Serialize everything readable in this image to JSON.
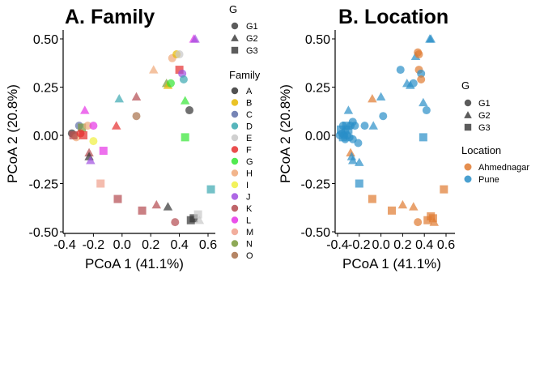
{
  "colors": {
    "A": "#333333",
    "B": "#e6b800",
    "C": "#5e6fa8",
    "D": "#3aa8b0",
    "E": "#c8c8c8",
    "F": "#e62e2e",
    "G": "#33e633",
    "H": "#f0a878",
    "I": "#f0f040",
    "J": "#a04ee0",
    "K": "#b44a50",
    "L": "#e633e6",
    "M": "#f0a08c",
    "N": "#7a9a3a",
    "O": "#a8704a",
    "Ahmednagar": "#e07a30",
    "Pune": "#2a8fc8"
  },
  "legend": {
    "g_title": "G",
    "g_items": [
      "G1",
      "G2",
      "G3"
    ],
    "family_title": "Family",
    "family_items": [
      "A",
      "B",
      "C",
      "D",
      "E",
      "F",
      "G",
      "H",
      "I",
      "J",
      "K",
      "L",
      "M",
      "N",
      "O"
    ],
    "location_title": "Location",
    "location_items": [
      "Ahmednagar",
      "Pune"
    ]
  },
  "chart_data": [
    {
      "type": "scatter",
      "title": "A. Family",
      "xlabel": "PCoA 1 (41.1%)",
      "ylabel": "PCoA 2 (20.8%)",
      "xlim": [
        -0.4,
        0.65
      ],
      "ylim": [
        -0.52,
        0.55
      ],
      "xticks": [
        -0.4,
        -0.2,
        0.0,
        0.2,
        0.4,
        0.6
      ],
      "xtick_labels": [
        "-0.4",
        "-0.2",
        "0.0",
        "0.2",
        "0.4",
        "0.6"
      ],
      "yticks": [
        -0.5,
        -0.25,
        0.0,
        0.25,
        0.5
      ],
      "ytick_labels": [
        "-0.50",
        "-0.25",
        "0.00",
        "0.25",
        "0.50"
      ],
      "grid": false,
      "legend_position": "right",
      "shape_key": "G",
      "color_key": "Family",
      "points": [
        {
          "x": -0.35,
          "y": 0.01,
          "g": "G1",
          "c": "A"
        },
        {
          "x": -0.33,
          "y": 0.0,
          "g": "G1",
          "c": "O"
        },
        {
          "x": -0.32,
          "y": -0.01,
          "g": "G1",
          "c": "H"
        },
        {
          "x": -0.34,
          "y": 0.0,
          "g": "G3",
          "c": "K"
        },
        {
          "x": -0.3,
          "y": 0.05,
          "g": "G1",
          "c": "C"
        },
        {
          "x": -0.28,
          "y": 0.04,
          "g": "G3",
          "c": "N"
        },
        {
          "x": -0.27,
          "y": 0.0,
          "g": "G3",
          "c": "F"
        },
        {
          "x": -0.29,
          "y": 0.01,
          "g": "G1",
          "c": "F"
        },
        {
          "x": -0.26,
          "y": 0.13,
          "g": "G2",
          "c": "L"
        },
        {
          "x": -0.24,
          "y": 0.05,
          "g": "G1",
          "c": "H"
        },
        {
          "x": -0.2,
          "y": 0.05,
          "g": "G1",
          "c": "L"
        },
        {
          "x": -0.2,
          "y": -0.03,
          "g": "G1",
          "c": "I"
        },
        {
          "x": -0.23,
          "y": -0.09,
          "g": "G2",
          "c": "K"
        },
        {
          "x": -0.23,
          "y": -0.11,
          "g": "G2",
          "c": "A"
        },
        {
          "x": -0.22,
          "y": -0.13,
          "g": "G2",
          "c": "J"
        },
        {
          "x": -0.13,
          "y": -0.08,
          "g": "G3",
          "c": "L"
        },
        {
          "x": -0.15,
          "y": -0.25,
          "g": "G3",
          "c": "M"
        },
        {
          "x": -0.04,
          "y": 0.05,
          "g": "G2",
          "c": "F"
        },
        {
          "x": -0.02,
          "y": 0.19,
          "g": "G2",
          "c": "D"
        },
        {
          "x": -0.03,
          "y": -0.33,
          "g": "G3",
          "c": "K"
        },
        {
          "x": 0.1,
          "y": 0.2,
          "g": "G2",
          "c": "K"
        },
        {
          "x": 0.1,
          "y": 0.1,
          "g": "G1",
          "c": "O"
        },
        {
          "x": 0.14,
          "y": -0.39,
          "g": "G3",
          "c": "K"
        },
        {
          "x": 0.22,
          "y": 0.34,
          "g": "G2",
          "c": "H"
        },
        {
          "x": 0.24,
          "y": -0.36,
          "g": "G2",
          "c": "K"
        },
        {
          "x": 0.31,
          "y": 0.27,
          "g": "G2",
          "c": "N"
        },
        {
          "x": 0.32,
          "y": 0.26,
          "g": "G2",
          "c": "B"
        },
        {
          "x": 0.34,
          "y": 0.27,
          "g": "G1",
          "c": "G"
        },
        {
          "x": 0.35,
          "y": 0.4,
          "g": "G1",
          "c": "H"
        },
        {
          "x": 0.38,
          "y": 0.42,
          "g": "G1",
          "c": "B"
        },
        {
          "x": 0.4,
          "y": 0.42,
          "g": "G1",
          "c": "E"
        },
        {
          "x": 0.4,
          "y": 0.34,
          "g": "G3",
          "c": "F"
        },
        {
          "x": 0.42,
          "y": 0.32,
          "g": "G1",
          "c": "J"
        },
        {
          "x": 0.43,
          "y": 0.29,
          "g": "G1",
          "c": "D"
        },
        {
          "x": 0.44,
          "y": 0.18,
          "g": "G2",
          "c": "G"
        },
        {
          "x": 0.47,
          "y": 0.13,
          "g": "G1",
          "c": "A"
        },
        {
          "x": 0.44,
          "y": -0.01,
          "g": "G3",
          "c": "G"
        },
        {
          "x": 0.32,
          "y": -0.37,
          "g": "G2",
          "c": "A"
        },
        {
          "x": 0.37,
          "y": -0.45,
          "g": "G1",
          "c": "K"
        },
        {
          "x": 0.48,
          "y": -0.44,
          "g": "G3",
          "c": "A"
        },
        {
          "x": 0.5,
          "y": -0.43,
          "g": "G3",
          "c": "A"
        },
        {
          "x": 0.53,
          "y": -0.41,
          "g": "G3",
          "c": "E"
        },
        {
          "x": 0.54,
          "y": -0.44,
          "g": "G2",
          "c": "E"
        },
        {
          "x": 0.62,
          "y": -0.28,
          "g": "G3",
          "c": "D"
        },
        {
          "x": 0.5,
          "y": 0.5,
          "g": "G2",
          "c": "L"
        },
        {
          "x": 0.51,
          "y": 0.5,
          "g": "G2",
          "c": "J"
        }
      ]
    },
    {
      "type": "scatter",
      "title": "B. Location",
      "xlabel": "PCoA 1 (41.1%)",
      "ylabel": "PCoA 2 (20.8%)",
      "xlim": [
        -0.4,
        0.68
      ],
      "ylim": [
        -0.52,
        0.55
      ],
      "xticks": [
        -0.4,
        -0.2,
        0.0,
        0.2,
        0.4,
        0.6
      ],
      "xtick_labels": [
        "-0.4",
        "-0.2",
        "0.0",
        "0.2",
        "0.4",
        "0.6"
      ],
      "yticks": [
        -0.5,
        -0.25,
        0.0,
        0.25,
        0.5
      ],
      "ytick_labels": [
        "-0.50",
        "-0.25",
        "0.00",
        "0.25",
        "0.50"
      ],
      "grid": false,
      "legend_position": "right",
      "shape_key": "G",
      "color_key": "Location",
      "points": [
        {
          "x": -0.38,
          "y": 0.0,
          "g": "G1",
          "c": "Pune"
        },
        {
          "x": -0.37,
          "y": 0.03,
          "g": "G3",
          "c": "Pune"
        },
        {
          "x": -0.36,
          "y": 0.01,
          "g": "G1",
          "c": "Pune"
        },
        {
          "x": -0.35,
          "y": 0.05,
          "g": "G1",
          "c": "Pune"
        },
        {
          "x": -0.35,
          "y": -0.01,
          "g": "G3",
          "c": "Pune"
        },
        {
          "x": -0.34,
          "y": 0.0,
          "g": "G1",
          "c": "Pune"
        },
        {
          "x": -0.33,
          "y": 0.02,
          "g": "G1",
          "c": "Pune"
        },
        {
          "x": -0.32,
          "y": 0.05,
          "g": "G3",
          "c": "Pune"
        },
        {
          "x": -0.33,
          "y": -0.02,
          "g": "G1",
          "c": "Pune"
        },
        {
          "x": -0.31,
          "y": 0.0,
          "g": "G1",
          "c": "Pune"
        },
        {
          "x": -0.3,
          "y": 0.03,
          "g": "G3",
          "c": "Pune"
        },
        {
          "x": -0.29,
          "y": -0.01,
          "g": "G1",
          "c": "Pune"
        },
        {
          "x": -0.3,
          "y": 0.13,
          "g": "G2",
          "c": "Pune"
        },
        {
          "x": -0.28,
          "y": 0.05,
          "g": "G1",
          "c": "Pune"
        },
        {
          "x": -0.26,
          "y": 0.07,
          "g": "G1",
          "c": "Pune"
        },
        {
          "x": -0.26,
          "y": -0.02,
          "g": "G1",
          "c": "Pune"
        },
        {
          "x": -0.28,
          "y": -0.09,
          "g": "G2",
          "c": "Ahmednagar"
        },
        {
          "x": -0.27,
          "y": -0.11,
          "g": "G2",
          "c": "Pune"
        },
        {
          "x": -0.26,
          "y": -0.13,
          "g": "G2",
          "c": "Pune"
        },
        {
          "x": -0.24,
          "y": 0.05,
          "g": "G1",
          "c": "Pune"
        },
        {
          "x": -0.21,
          "y": -0.04,
          "g": "G1",
          "c": "Pune"
        },
        {
          "x": -0.2,
          "y": -0.14,
          "g": "G2",
          "c": "Pune"
        },
        {
          "x": -0.2,
          "y": -0.25,
          "g": "G3",
          "c": "Pune"
        },
        {
          "x": -0.15,
          "y": 0.05,
          "g": "G1",
          "c": "Pune"
        },
        {
          "x": -0.07,
          "y": 0.05,
          "g": "G2",
          "c": "Pune"
        },
        {
          "x": -0.08,
          "y": 0.19,
          "g": "G2",
          "c": "Ahmednagar"
        },
        {
          "x": -0.08,
          "y": -0.33,
          "g": "G3",
          "c": "Ahmednagar"
        },
        {
          "x": 0.0,
          "y": 0.2,
          "g": "G2",
          "c": "Pune"
        },
        {
          "x": 0.02,
          "y": 0.1,
          "g": "G1",
          "c": "Pune"
        },
        {
          "x": 0.1,
          "y": -0.39,
          "g": "G3",
          "c": "Ahmednagar"
        },
        {
          "x": 0.18,
          "y": 0.34,
          "g": "G1",
          "c": "Pune"
        },
        {
          "x": 0.2,
          "y": -0.36,
          "g": "G2",
          "c": "Ahmednagar"
        },
        {
          "x": 0.24,
          "y": 0.27,
          "g": "G2",
          "c": "Pune"
        },
        {
          "x": 0.27,
          "y": 0.26,
          "g": "G2",
          "c": "Pune"
        },
        {
          "x": 0.3,
          "y": 0.27,
          "g": "G1",
          "c": "Pune"
        },
        {
          "x": 0.32,
          "y": 0.41,
          "g": "G2",
          "c": "Pune"
        },
        {
          "x": 0.34,
          "y": 0.43,
          "g": "G1",
          "c": "Ahmednagar"
        },
        {
          "x": 0.35,
          "y": 0.42,
          "g": "G1",
          "c": "Ahmednagar"
        },
        {
          "x": 0.35,
          "y": 0.34,
          "g": "G1",
          "c": "Ahmednagar"
        },
        {
          "x": 0.37,
          "y": 0.32,
          "g": "G1",
          "c": "Pune"
        },
        {
          "x": 0.37,
          "y": 0.29,
          "g": "G1",
          "c": "Ahmednagar"
        },
        {
          "x": 0.39,
          "y": 0.17,
          "g": "G2",
          "c": "Pune"
        },
        {
          "x": 0.42,
          "y": 0.13,
          "g": "G1",
          "c": "Pune"
        },
        {
          "x": 0.39,
          "y": -0.01,
          "g": "G3",
          "c": "Pune"
        },
        {
          "x": 0.3,
          "y": -0.37,
          "g": "G2",
          "c": "Ahmednagar"
        },
        {
          "x": 0.34,
          "y": -0.45,
          "g": "G1",
          "c": "Ahmednagar"
        },
        {
          "x": 0.43,
          "y": -0.44,
          "g": "G3",
          "c": "Ahmednagar"
        },
        {
          "x": 0.46,
          "y": -0.42,
          "g": "G3",
          "c": "Ahmednagar"
        },
        {
          "x": 0.48,
          "y": -0.43,
          "g": "G3",
          "c": "Ahmednagar"
        },
        {
          "x": 0.49,
          "y": -0.45,
          "g": "G2",
          "c": "Ahmednagar"
        },
        {
          "x": 0.58,
          "y": -0.28,
          "g": "G3",
          "c": "Ahmednagar"
        },
        {
          "x": 0.45,
          "y": 0.5,
          "g": "G2",
          "c": "Pune"
        },
        {
          "x": 0.46,
          "y": 0.5,
          "g": "G2",
          "c": "Pune"
        }
      ]
    }
  ]
}
